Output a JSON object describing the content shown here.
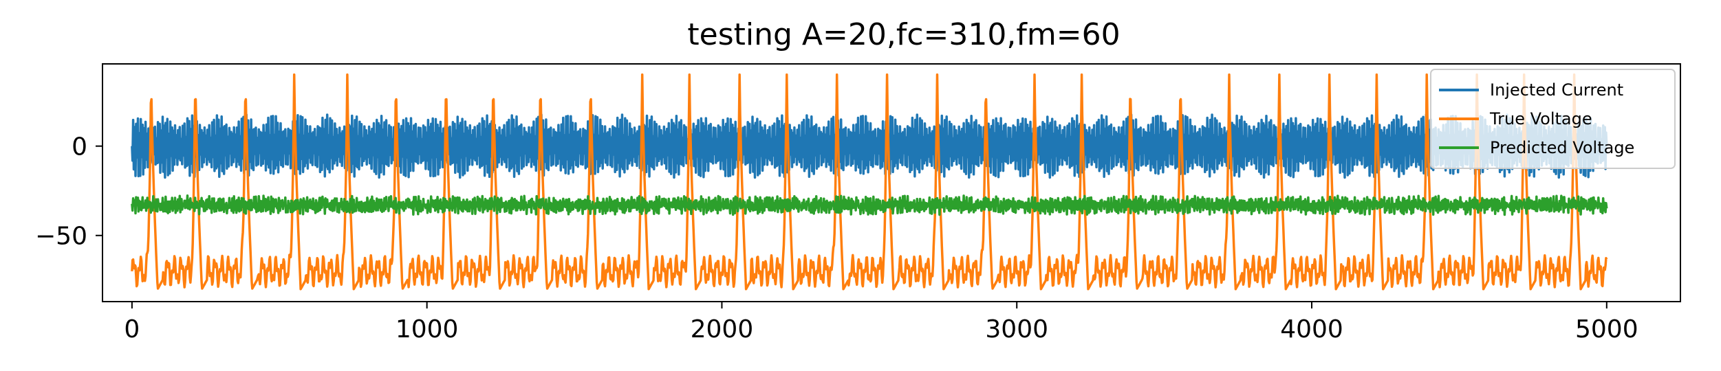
{
  "chart_data": {
    "type": "line",
    "title": "testing A=20,fc=310,fm=60",
    "xlabel": "",
    "ylabel": "",
    "xlim": [
      -100,
      5250
    ],
    "ylim": [
      -87,
      46
    ],
    "x_ticks": [
      0,
      1000,
      2000,
      3000,
      4000,
      5000
    ],
    "x_tick_labels": [
      "0",
      "1000",
      "2000",
      "3000",
      "4000",
      "5000"
    ],
    "y_ticks": [
      0,
      -50
    ],
    "y_tick_labels": [
      "0",
      "−50"
    ],
    "grid": false,
    "legend_position": "upper right",
    "x_range": [
      0,
      5000
    ],
    "series": [
      {
        "name": "Injected Current",
        "color": "#1f77b4",
        "baseline": 0,
        "amplitude": 20,
        "carrier_frequency": 310,
        "modulation_frequency": 60
      },
      {
        "name": "True Voltage",
        "color": "#ff7f0e",
        "resting_range": [
          -80,
          -60
        ],
        "spike_peak": 40,
        "spike_x": [
          65,
          215,
          385,
          550,
          730,
          895,
          1065,
          1225,
          1385,
          1555,
          1730,
          1890,
          2060,
          2220,
          2390,
          2560,
          2730,
          2895,
          3060,
          3220,
          3385,
          3555,
          3720,
          3890,
          4060,
          4220,
          4390,
          4560,
          4720,
          4890
        ]
      },
      {
        "name": "Predicted Voltage",
        "color": "#2ca02c",
        "baseline": -33,
        "range": [
          -44,
          -26
        ]
      }
    ]
  }
}
